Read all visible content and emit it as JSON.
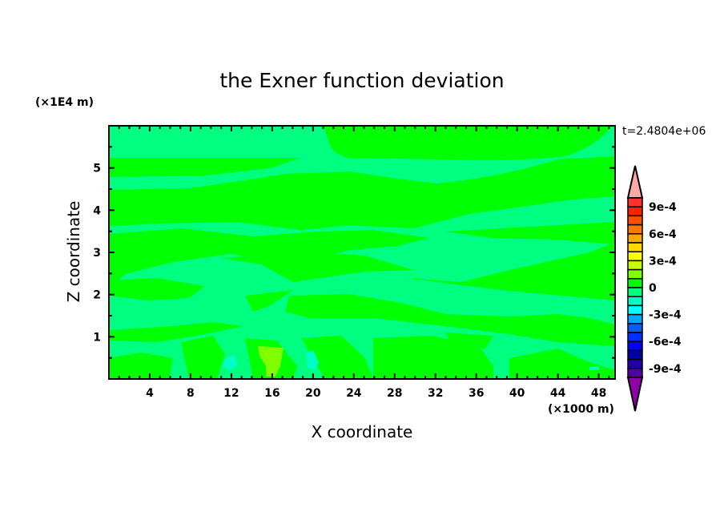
{
  "chart_data": {
    "type": "heatmap",
    "subtype": "filled-contour",
    "title": "the Exner function deviation",
    "xlabel": "X coordinate",
    "ylabel": "Z coordinate",
    "x_unit_label": "(×1000 m)",
    "y_unit_label": "(×1E4 m)",
    "annotation": "t=2.4804e+06",
    "xlim": [
      0,
      49.6
    ],
    "ylim": [
      0,
      6
    ],
    "x_ticks": [
      4,
      8,
      12,
      16,
      20,
      24,
      28,
      32,
      36,
      40,
      44,
      48
    ],
    "y_ticks": [
      1,
      2,
      3,
      4,
      5
    ],
    "colorbar": {
      "levels_min": -0.001,
      "levels_max": 0.001,
      "level_step": 0.0001,
      "tick_labels": [
        "9e-4",
        "6e-4",
        "3e-4",
        "0",
        "-3e-4",
        "-6e-4",
        "-9e-4"
      ],
      "tick_values": [
        0.0009,
        0.0006,
        0.0003,
        0,
        -0.0003,
        -0.0006,
        -0.0009
      ],
      "colors_top_to_bottom": [
        "#ff3030",
        "#ff2000",
        "#ff5000",
        "#ff7800",
        "#ffa800",
        "#ffd800",
        "#ffff00",
        "#c8ff00",
        "#80ff00",
        "#00ff00",
        "#00ff80",
        "#00ffc8",
        "#00ffff",
        "#00a8ff",
        "#0060ff",
        "#0030ff",
        "#0000ff",
        "#0000a8",
        "#2000a8",
        "#5000a8"
      ],
      "over_color": "#ffa8a8",
      "under_color": "#9000a8",
      "extend": "both"
    },
    "field_summary": {
      "dominant_range": [
        -0.0001,
        0.0001
      ],
      "background_color": "#00ff80",
      "positive_band_color": "#00ff00",
      "max_patch_color": "#80ff00",
      "min_patch_color": "#00ffc8"
    }
  }
}
